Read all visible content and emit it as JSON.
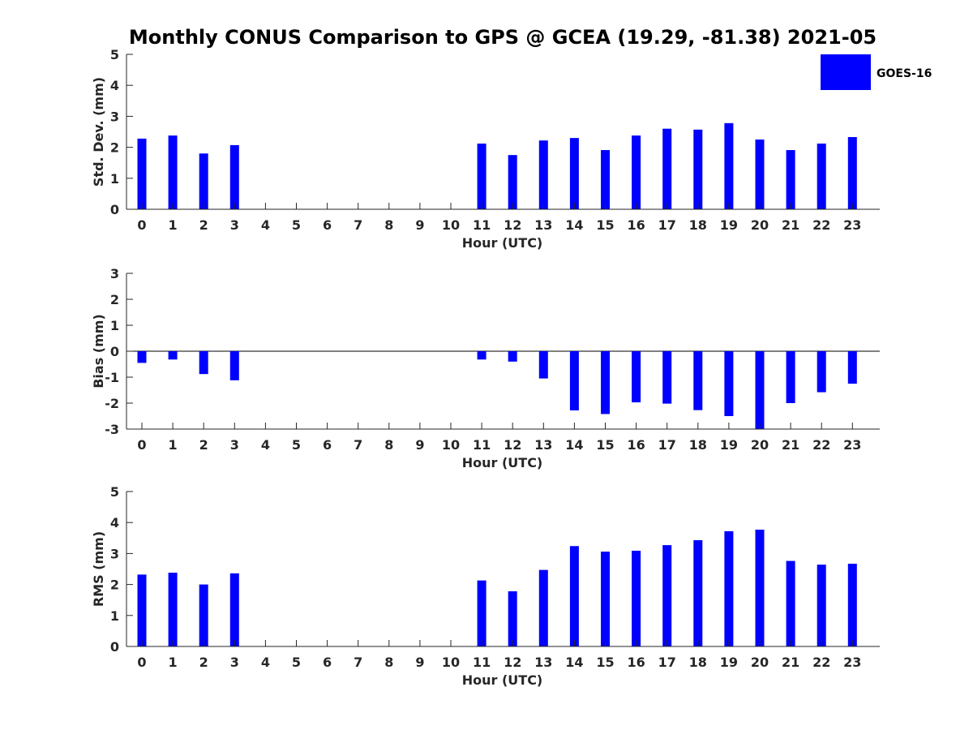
{
  "figure_title": "Monthly CONUS Comparison to GPS @ GCEA (19.29, -81.38) 2021-05",
  "legend": {
    "label": "GOES-16",
    "color": "#0000ff",
    "placement": "top-right"
  },
  "chart_data": [
    {
      "type": "bar",
      "xlabel": "Hour (UTC)",
      "ylabel": "Std. Dev. (mm)",
      "ylim": [
        0,
        5
      ],
      "yticks": [
        0,
        1,
        2,
        3,
        4,
        5
      ],
      "categories": [
        "0",
        "1",
        "2",
        "3",
        "4",
        "5",
        "6",
        "7",
        "8",
        "9",
        "10",
        "11",
        "12",
        "13",
        "14",
        "15",
        "16",
        "17",
        "18",
        "19",
        "20",
        "21",
        "22",
        "23"
      ],
      "series": [
        {
          "name": "GOES-16",
          "color": "#0000ff",
          "values": [
            2.28,
            2.38,
            1.8,
            2.07,
            null,
            null,
            null,
            null,
            null,
            null,
            null,
            2.12,
            1.75,
            2.22,
            2.3,
            1.91,
            2.38,
            2.6,
            2.57,
            2.78,
            2.25,
            1.91,
            2.12,
            2.33
          ]
        }
      ]
    },
    {
      "type": "bar",
      "xlabel": "Hour (UTC)",
      "ylabel": "Bias (mm)",
      "ylim": [
        -3,
        3
      ],
      "yticks": [
        -3,
        -2,
        -1,
        0,
        1,
        2,
        3
      ],
      "categories": [
        "0",
        "1",
        "2",
        "3",
        "4",
        "5",
        "6",
        "7",
        "8",
        "9",
        "10",
        "11",
        "12",
        "13",
        "14",
        "15",
        "16",
        "17",
        "18",
        "19",
        "20",
        "21",
        "22",
        "23"
      ],
      "series": [
        {
          "name": "GOES-16",
          "color": "#0000ff",
          "values": [
            -0.45,
            -0.32,
            -0.88,
            -1.12,
            null,
            null,
            null,
            null,
            null,
            null,
            null,
            -0.32,
            -0.4,
            -1.05,
            -2.28,
            -2.42,
            -1.97,
            -2.02,
            -2.27,
            -2.5,
            -3.0,
            -2.0,
            -1.58,
            -1.25
          ]
        }
      ]
    },
    {
      "type": "bar",
      "xlabel": "Hour (UTC)",
      "ylabel": "RMS (mm)",
      "ylim": [
        0,
        5
      ],
      "yticks": [
        0,
        1,
        2,
        3,
        4,
        5
      ],
      "categories": [
        "0",
        "1",
        "2",
        "3",
        "4",
        "5",
        "6",
        "7",
        "8",
        "9",
        "10",
        "11",
        "12",
        "13",
        "14",
        "15",
        "16",
        "17",
        "18",
        "19",
        "20",
        "21",
        "22",
        "23"
      ],
      "series": [
        {
          "name": "GOES-16",
          "color": "#0000ff",
          "values": [
            2.32,
            2.38,
            2.0,
            2.36,
            null,
            null,
            null,
            null,
            null,
            null,
            null,
            2.13,
            1.78,
            2.47,
            3.24,
            3.06,
            3.09,
            3.27,
            3.43,
            3.72,
            3.77,
            2.76,
            2.64,
            2.67
          ]
        }
      ]
    }
  ]
}
